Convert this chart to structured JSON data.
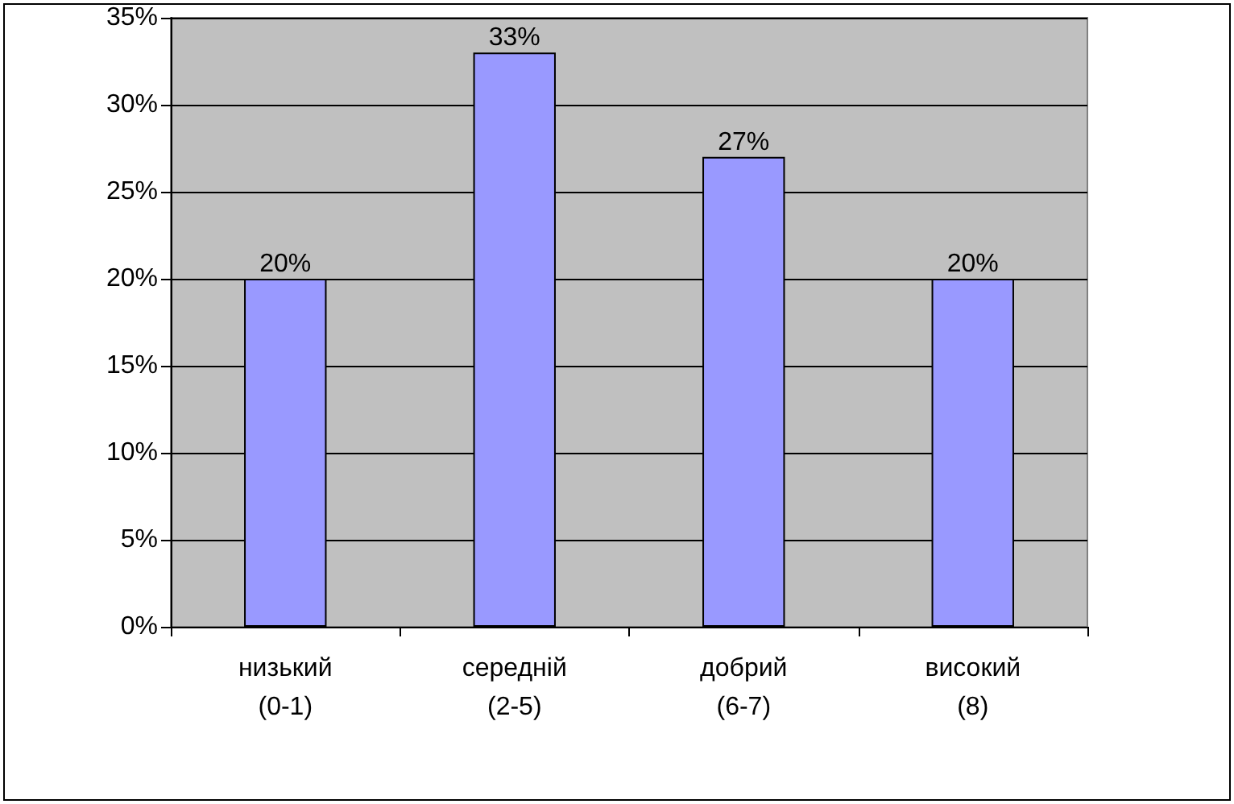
{
  "chart_data": {
    "type": "bar",
    "categories": [
      "низький\n(0-1)",
      "середній\n(2-5)",
      "добрий\n(6-7)",
      "високий\n(8)"
    ],
    "values": [
      20,
      33,
      27,
      20
    ],
    "value_labels": [
      "20%",
      "33%",
      "27%",
      "20%"
    ],
    "color": "#9999ff",
    "ylim": [
      0,
      35
    ],
    "yticks": [
      {
        "value": 0,
        "label": "0%"
      },
      {
        "value": 5,
        "label": "5%"
      },
      {
        "value": 10,
        "label": "10%"
      },
      {
        "value": 15,
        "label": "15%"
      },
      {
        "value": 20,
        "label": "20%"
      },
      {
        "value": 25,
        "label": "25%"
      },
      {
        "value": 30,
        "label": "30%"
      },
      {
        "value": 35,
        "label": "35%"
      }
    ],
    "grid": "y"
  }
}
